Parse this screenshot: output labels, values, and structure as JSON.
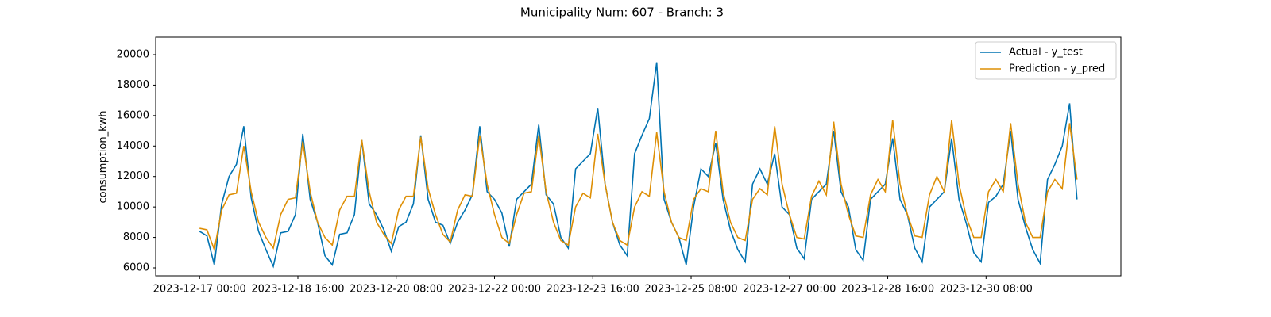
{
  "chart_data": {
    "type": "line",
    "title": "Municipality Num: 607 - Branch: 3",
    "y_label": "consumption_kwh",
    "x": [
      "2023-12-17 00:00",
      "2023-12-17 03:00",
      "2023-12-17 06:00",
      "2023-12-17 09:00",
      "2023-12-17 12:00",
      "2023-12-17 15:00",
      "2023-12-17 18:00",
      "2023-12-17 21:00",
      "2023-12-18 00:00",
      "2023-12-18 03:00",
      "2023-12-18 06:00",
      "2023-12-18 09:00",
      "2023-12-18 12:00",
      "2023-12-18 15:00",
      "2023-12-18 18:00",
      "2023-12-18 21:00",
      "2023-12-19 00:00",
      "2023-12-19 03:00",
      "2023-12-19 06:00",
      "2023-12-19 09:00",
      "2023-12-19 12:00",
      "2023-12-19 15:00",
      "2023-12-19 18:00",
      "2023-12-19 21:00",
      "2023-12-20 00:00",
      "2023-12-20 03:00",
      "2023-12-20 06:00",
      "2023-12-20 09:00",
      "2023-12-20 12:00",
      "2023-12-20 15:00",
      "2023-12-20 18:00",
      "2023-12-20 21:00",
      "2023-12-21 00:00",
      "2023-12-21 03:00",
      "2023-12-21 06:00",
      "2023-12-21 09:00",
      "2023-12-21 12:00",
      "2023-12-21 15:00",
      "2023-12-21 18:00",
      "2023-12-21 21:00",
      "2023-12-22 00:00",
      "2023-12-22 03:00",
      "2023-12-22 06:00",
      "2023-12-22 09:00",
      "2023-12-22 12:00",
      "2023-12-22 15:00",
      "2023-12-22 18:00",
      "2023-12-22 21:00",
      "2023-12-23 00:00",
      "2023-12-23 03:00",
      "2023-12-23 06:00",
      "2023-12-23 09:00",
      "2023-12-23 12:00",
      "2023-12-23 15:00",
      "2023-12-23 18:00",
      "2023-12-23 21:00",
      "2023-12-24 00:00",
      "2023-12-24 03:00",
      "2023-12-24 06:00",
      "2023-12-24 09:00",
      "2023-12-24 12:00",
      "2023-12-24 15:00",
      "2023-12-24 18:00",
      "2023-12-24 21:00",
      "2023-12-25 00:00",
      "2023-12-25 03:00",
      "2023-12-25 06:00",
      "2023-12-25 09:00",
      "2023-12-25 12:00",
      "2023-12-25 15:00",
      "2023-12-25 18:00",
      "2023-12-25 21:00",
      "2023-12-26 00:00",
      "2023-12-26 03:00",
      "2023-12-26 06:00",
      "2023-12-26 09:00",
      "2023-12-26 12:00",
      "2023-12-26 15:00",
      "2023-12-26 18:00",
      "2023-12-26 21:00",
      "2023-12-27 00:00",
      "2023-12-27 03:00",
      "2023-12-27 06:00",
      "2023-12-27 09:00",
      "2023-12-27 12:00",
      "2023-12-27 15:00",
      "2023-12-27 18:00",
      "2023-12-27 21:00",
      "2023-12-28 00:00",
      "2023-12-28 03:00",
      "2023-12-28 06:00",
      "2023-12-28 09:00",
      "2023-12-28 12:00",
      "2023-12-28 15:00",
      "2023-12-28 18:00",
      "2023-12-28 21:00",
      "2023-12-29 00:00",
      "2023-12-29 03:00",
      "2023-12-29 06:00",
      "2023-12-29 09:00",
      "2023-12-29 12:00",
      "2023-12-29 15:00",
      "2023-12-29 18:00",
      "2023-12-29 21:00",
      "2023-12-30 00:00",
      "2023-12-30 03:00",
      "2023-12-30 06:00",
      "2023-12-30 09:00",
      "2023-12-30 12:00",
      "2023-12-30 15:00",
      "2023-12-30 18:00",
      "2023-12-30 21:00",
      "2023-12-31 00:00",
      "2023-12-31 03:00",
      "2023-12-31 06:00",
      "2023-12-31 09:00",
      "2023-12-31 12:00",
      "2023-12-31 15:00",
      "2023-12-31 18:00",
      "2023-12-31 21:00"
    ],
    "series": [
      {
        "name": "Actual - y_test",
        "color": "#0173b2",
        "values": [
          8400,
          8100,
          6200,
          10200,
          12000,
          12800,
          15300,
          10600,
          8400,
          7200,
          6100,
          8300,
          8400,
          9500,
          14800,
          10500,
          9000,
          6800,
          6200,
          8200,
          8300,
          9500,
          14400,
          10200,
          9500,
          8500,
          7100,
          8700,
          9000,
          10200,
          14700,
          10500,
          9000,
          8800,
          7600,
          9000,
          9800,
          10800,
          15300,
          11000,
          10500,
          9600,
          7400,
          10500,
          11000,
          11500,
          15400,
          10800,
          10200,
          8000,
          7300,
          12500,
          13000,
          13500,
          16500,
          11500,
          9000,
          7500,
          6800,
          13500,
          14700,
          15800,
          19500,
          10500,
          9000,
          8000,
          6200,
          10000,
          12500,
          12000,
          14200,
          10500,
          8500,
          7200,
          6400,
          11500,
          12500,
          11500,
          13500,
          10000,
          9500,
          7300,
          6600,
          10500,
          11000,
          11500,
          15000,
          11000,
          10000,
          7200,
          6500,
          10500,
          11000,
          11500,
          14500,
          10500,
          9500,
          7300,
          6400,
          10000,
          10500,
          11000,
          14500,
          10500,
          8900,
          7000,
          6400,
          10300,
          10700,
          11500,
          15000,
          10500,
          8700,
          7200,
          6300,
          11800,
          12800,
          14000,
          16800,
          10500
        ]
      },
      {
        "name": "Prediction - y_pred",
        "color": "#de8f05",
        "values": [
          8600,
          8500,
          7200,
          9800,
          10800,
          10900,
          14000,
          11000,
          9000,
          8000,
          7300,
          9500,
          10500,
          10600,
          14300,
          11000,
          9000,
          8000,
          7500,
          9800,
          10700,
          10700,
          14400,
          11000,
          9000,
          8200,
          7600,
          9800,
          10700,
          10700,
          14600,
          11200,
          9500,
          8200,
          7700,
          9800,
          10800,
          10700,
          14700,
          11500,
          9500,
          8000,
          7600,
          9500,
          10900,
          11000,
          14700,
          11000,
          9000,
          7800,
          7500,
          10000,
          10900,
          10600,
          14800,
          11500,
          9000,
          7800,
          7500,
          10000,
          11000,
          10700,
          14900,
          11000,
          9000,
          8000,
          7800,
          10500,
          11200,
          11000,
          15000,
          11000,
          9000,
          8000,
          7800,
          10500,
          11200,
          10800,
          15300,
          11500,
          9500,
          8000,
          7900,
          10700,
          11700,
          10800,
          15600,
          11500,
          9500,
          8100,
          8000,
          10800,
          11800,
          11000,
          15700,
          11500,
          9500,
          8100,
          8000,
          10800,
          12000,
          11000,
          15700,
          11500,
          9300,
          8000,
          8000,
          11000,
          11800,
          11000,
          15500,
          11500,
          9000,
          8000,
          8000,
          11000,
          11800,
          11200,
          15500,
          11800
        ]
      }
    ],
    "xticks": [
      "2023-12-17 00:00",
      "2023-12-18 16:00",
      "2023-12-20 08:00",
      "2023-12-22 00:00",
      "2023-12-23 16:00",
      "2023-12-25 08:00",
      "2023-12-27 00:00",
      "2023-12-28 16:00",
      "2023-12-30 08:00"
    ],
    "ylim": [
      5480,
      21145
    ],
    "yticks": [
      6000,
      8000,
      10000,
      12000,
      14000,
      16000,
      18000,
      20000
    ],
    "legend": "upper right",
    "grid": false
  }
}
